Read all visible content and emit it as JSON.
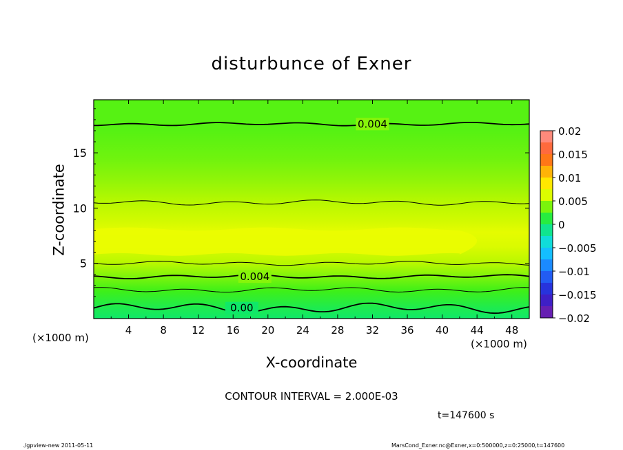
{
  "chart_data": {
    "type": "heatmap",
    "title": "disturbunce of Exner",
    "xlabel": "X-coordinate",
    "ylabel": "Z-coordinate",
    "x_unit": "(×1000 m)",
    "y_unit": "(×1000 m)",
    "xlim": [
      0,
      50
    ],
    "ylim": [
      0,
      19.8
    ],
    "x_ticks": [
      4,
      8,
      12,
      16,
      20,
      24,
      28,
      32,
      36,
      40,
      44,
      48
    ],
    "y_ticks": [
      5,
      10,
      15
    ],
    "z_profile": [
      {
        "z": 0.0,
        "value": 0.0
      },
      {
        "z": 1.0,
        "value": 0.0008
      },
      {
        "z": 2.5,
        "value": 0.0025
      },
      {
        "z": 4.0,
        "value": 0.004
      },
      {
        "z": 5.0,
        "value": 0.005
      },
      {
        "z": 6.5,
        "value": 0.0062
      },
      {
        "z": 7.8,
        "value": 0.0066
      },
      {
        "z": 9.0,
        "value": 0.0058
      },
      {
        "z": 10.5,
        "value": 0.005
      },
      {
        "z": 12.5,
        "value": 0.0042
      },
      {
        "z": 14.5,
        "value": 0.0035
      },
      {
        "z": 17.0,
        "value": 0.003
      },
      {
        "z": 19.8,
        "value": 0.003
      }
    ],
    "contours": [
      {
        "level": "0.00",
        "z": 0.95,
        "amp": 0.3,
        "label": "0.00",
        "label_x": 17,
        "bold": true
      },
      {
        "level": "0.002",
        "z": 2.6,
        "amp": 0.15,
        "label": "",
        "bold": false
      },
      {
        "level": "0.004",
        "z": 3.8,
        "amp": 0.12,
        "label": "0.004",
        "label_x": 18.5,
        "bold": true
      },
      {
        "level": "0.005",
        "z": 5.0,
        "amp": 0.12,
        "label": "",
        "bold": false
      },
      {
        "level": "0.005",
        "z": 10.5,
        "amp": 0.15,
        "label": "",
        "bold": false
      },
      {
        "level": "0.004",
        "z": 17.6,
        "amp": 0.1,
        "label": "0.004",
        "label_x": 32,
        "bold": true
      }
    ],
    "colorbar": {
      "ticks": [
        "0.02",
        "0.015",
        "0.01",
        "0.005",
        "0",
        "−0.005",
        "−0.01",
        "−0.015",
        "−0.02"
      ],
      "range": [
        -0.02,
        0.02
      ]
    },
    "contour_interval": "CONTOUR INTERVAL = 2.000E-03",
    "time": "t=147600 s"
  },
  "footer": {
    "left": "./gpview-new   2011-05-11",
    "right": "MarsCond_Exner.nc@Exner,x=0:500000,z=0:25000,t=147600"
  },
  "colors": {
    "text": "#000000",
    "frame": "#000000"
  }
}
